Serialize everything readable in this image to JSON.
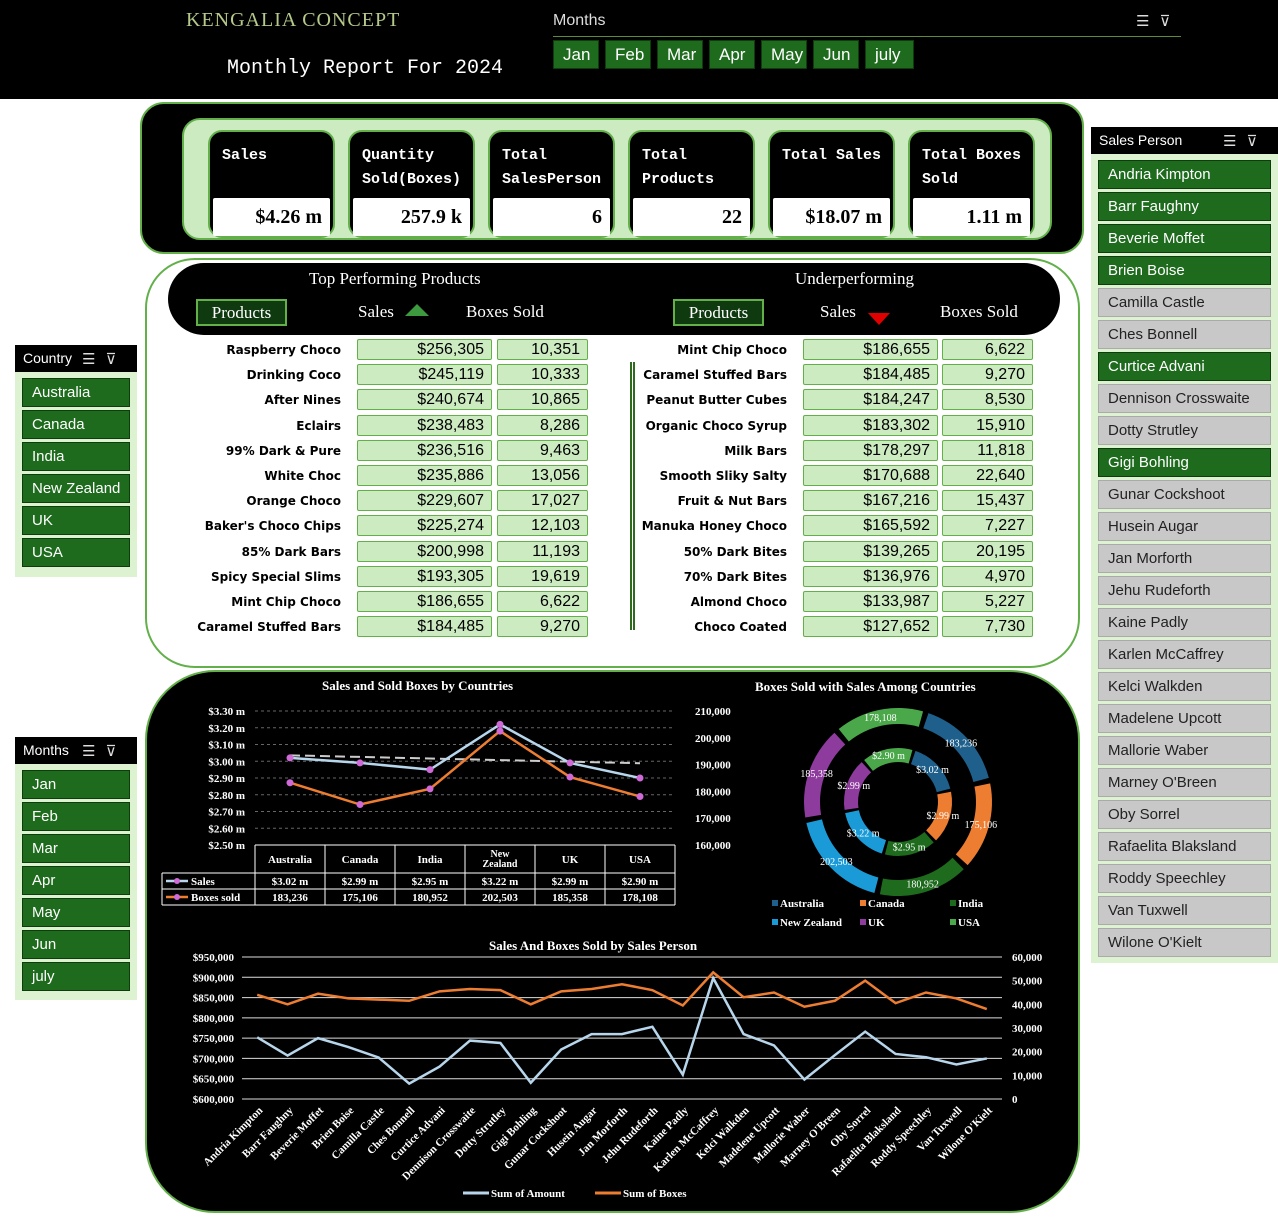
{
  "header": {
    "brand": "KENGALIA CONCEPT",
    "title": "Monthly Report For 2024",
    "months_label": "Months",
    "months": [
      "Jan",
      "Feb",
      "Mar",
      "Apr",
      "May",
      "Jun",
      "july"
    ]
  },
  "kpis": [
    {
      "title": "Sales",
      "value": "$4.26 m"
    },
    {
      "title": "Quantity Sold(Boxes)",
      "value": "257.9 k"
    },
    {
      "title": "Total SalesPerson",
      "value": "6"
    },
    {
      "title": "Total Products",
      "value": "22"
    },
    {
      "title": "Total Sales",
      "value": "$18.07 m"
    },
    {
      "title": "Total Boxes Sold",
      "value": "1.11 m"
    }
  ],
  "top_products": {
    "title": "Top Performing Products",
    "col_products": "Products",
    "col_sales": "Sales",
    "col_boxes": "Boxes Sold",
    "rows": [
      {
        "name": "Raspberry Choco",
        "sales": "$256,305",
        "boxes": "10,351"
      },
      {
        "name": "Drinking Coco",
        "sales": "$245,119",
        "boxes": "10,333"
      },
      {
        "name": "After Nines",
        "sales": "$240,674",
        "boxes": "10,865"
      },
      {
        "name": "Eclairs",
        "sales": "$238,483",
        "boxes": "8,286"
      },
      {
        "name": "99% Dark & Pure",
        "sales": "$236,516",
        "boxes": "9,463"
      },
      {
        "name": "White Choc",
        "sales": "$235,886",
        "boxes": "13,056"
      },
      {
        "name": "Orange Choco",
        "sales": "$229,607",
        "boxes": "17,027"
      },
      {
        "name": "Baker's Choco Chips",
        "sales": "$225,274",
        "boxes": "12,103"
      },
      {
        "name": "85% Dark Bars",
        "sales": "$200,998",
        "boxes": "11,193"
      },
      {
        "name": "Spicy Special Slims",
        "sales": "$193,305",
        "boxes": "19,619"
      },
      {
        "name": "Mint Chip Choco",
        "sales": "$186,655",
        "boxes": "6,622"
      },
      {
        "name": "Caramel Stuffed Bars",
        "sales": "$184,485",
        "boxes": "9,270"
      }
    ]
  },
  "under_products": {
    "title": "Underperforming",
    "col_products": "Products",
    "col_sales": "Sales",
    "col_boxes": "Boxes Sold",
    "rows": [
      {
        "name": "Mint Chip Choco",
        "sales": "$186,655",
        "boxes": "6,622"
      },
      {
        "name": "Caramel Stuffed Bars",
        "sales": "$184,485",
        "boxes": "9,270"
      },
      {
        "name": "Peanut Butter Cubes",
        "sales": "$184,247",
        "boxes": "8,530"
      },
      {
        "name": "Organic Choco Syrup",
        "sales": "$183,302",
        "boxes": "15,910"
      },
      {
        "name": "Milk Bars",
        "sales": "$178,297",
        "boxes": "11,818"
      },
      {
        "name": "Smooth Sliky Salty",
        "sales": "$170,688",
        "boxes": "22,640"
      },
      {
        "name": "Fruit & Nut Bars",
        "sales": "$167,216",
        "boxes": "15,437"
      },
      {
        "name": "Manuka Honey Choco",
        "sales": "$165,592",
        "boxes": "7,227"
      },
      {
        "name": "50% Dark Bites",
        "sales": "$139,265",
        "boxes": "20,195"
      },
      {
        "name": "70% Dark Bites",
        "sales": "$136,976",
        "boxes": "4,970"
      },
      {
        "name": "Almond Choco",
        "sales": "$133,987",
        "boxes": "5,227"
      },
      {
        "name": "Choco Coated",
        "sales": "$127,652",
        "boxes": "7,730"
      }
    ]
  },
  "country_slicer": {
    "label": "Country",
    "items": [
      "Australia",
      "Canada",
      "India",
      "New Zealand",
      "UK",
      "USA"
    ]
  },
  "months_slicer": {
    "label": "Months",
    "items": [
      "Jan",
      "Feb",
      "Mar",
      "Apr",
      "May",
      "Jun",
      "july"
    ]
  },
  "sales_person_slicer": {
    "label": "Sales Person",
    "items": [
      {
        "name": "Andria Kimpton",
        "selected": true
      },
      {
        "name": "Barr Faughny",
        "selected": true
      },
      {
        "name": "Beverie Moffet",
        "selected": true
      },
      {
        "name": "Brien Boise",
        "selected": true
      },
      {
        "name": "Camilla Castle",
        "selected": false
      },
      {
        "name": "Ches Bonnell",
        "selected": false
      },
      {
        "name": "Curtice Advani",
        "selected": true
      },
      {
        "name": "Dennison Crosswaite",
        "selected": false
      },
      {
        "name": "Dotty Strutley",
        "selected": false
      },
      {
        "name": "Gigi Bohling",
        "selected": true
      },
      {
        "name": "Gunar Cockshoot",
        "selected": false
      },
      {
        "name": "Husein Augar",
        "selected": false
      },
      {
        "name": "Jan Morforth",
        "selected": false
      },
      {
        "name": "Jehu Rudeforth",
        "selected": false
      },
      {
        "name": "Kaine Padly",
        "selected": false
      },
      {
        "name": "Karlen McCaffrey",
        "selected": false
      },
      {
        "name": "Kelci Walkden",
        "selected": false
      },
      {
        "name": "Madelene Upcott",
        "selected": false
      },
      {
        "name": "Mallorie Waber",
        "selected": false
      },
      {
        "name": "Marney O'Breen",
        "selected": false
      },
      {
        "name": "Oby Sorrel",
        "selected": false
      },
      {
        "name": "Rafaelita Blaksland",
        "selected": false
      },
      {
        "name": "Roddy Speechley",
        "selected": false
      },
      {
        "name": "Van Tuxwell",
        "selected": false
      },
      {
        "name": "Wilone O'Kielt",
        "selected": false
      }
    ]
  },
  "colors": {
    "accent_green": "#63b04b",
    "slicer_selected": "#1e6b1e",
    "slicer_unselected": "#c8c8c8",
    "panel_bg": "#ddf2d1",
    "up_arrow": "#3e9a3e",
    "down_arrow": "#e00000"
  },
  "chart_data": [
    {
      "type": "line",
      "title": "Sales and Sold Boxes by Countries",
      "categories": [
        "Australia",
        "Canada",
        "India",
        "New Zealand",
        "UK",
        "USA"
      ],
      "series": [
        {
          "name": "Sales",
          "axis": "left",
          "values": [
            3.02,
            2.99,
            2.95,
            3.22,
            2.99,
            2.9
          ],
          "labels": [
            "$3.02 m",
            "$2.99 m",
            "$2.95 m",
            "$3.22 m",
            "$2.99 m",
            "$2.90 m"
          ],
          "color": "#b7d6ec"
        },
        {
          "name": "Boxes sold",
          "axis": "right",
          "values": [
            183236,
            175106,
            180952,
            202503,
            185358,
            178108
          ],
          "labels": [
            "183,236",
            "175,106",
            "180,952",
            "202,503",
            "185,358",
            "178,108"
          ],
          "color": "#ed7d31"
        }
      ],
      "trendline": true,
      "y_left_ticks": [
        "$3.30 m",
        "$3.20 m",
        "$3.10 m",
        "$3.00 m",
        "$2.90 m",
        "$2.80 m",
        "$2.70 m",
        "$2.60 m",
        "$2.50 m"
      ],
      "y_left_range": [
        2.5,
        3.3
      ],
      "y_right_ticks": [
        "210,000",
        "200,000",
        "190,000",
        "180,000",
        "170,000",
        "160,000"
      ],
      "y_right_range": [
        160000,
        210000
      ],
      "grid": true,
      "data_table": true
    },
    {
      "type": "pie",
      "title": "Boxes Sold with Sales Among Countries",
      "variant": "doughnut",
      "categories": [
        "Australia",
        "Canada",
        "India",
        "New Zealand",
        "UK",
        "USA"
      ],
      "colors": [
        "#1f5f8b",
        "#ed7d31",
        "#1e6b1e",
        "#1a9bd7",
        "#8e3b9e",
        "#4aa84a"
      ],
      "outer_ring_boxes": [
        183236,
        175106,
        180952,
        202503,
        185358,
        178108
      ],
      "outer_labels": [
        "183,236",
        "175,106",
        "180,952",
        "202,503",
        "185,358",
        "178,108"
      ],
      "inner_ring_sales": [
        3.02,
        2.99,
        2.95,
        3.22,
        2.99,
        2.9
      ],
      "inner_labels": [
        "$3.02 m",
        "$2.99 m",
        "$2.95 m",
        "$3.22 m",
        "$2.99 m",
        "$2.90 m"
      ],
      "legend": "bottom"
    },
    {
      "type": "line",
      "title": "Sales And Boxes Sold by Sales Person",
      "categories": [
        "Andria Kimpton",
        "Barr Faughny",
        "Beverie Moffet",
        "Brien Boise",
        "Camilla Castle",
        "Ches Bonnell",
        "Curtice Advani",
        "Dennison Crosswaite",
        "Dotty Strutley",
        "Gigi Bohling",
        "Gunar Cockshoot",
        "Husein Augar",
        "Jan Morforth",
        "Jehu Rudeforth",
        "Kaine Padly",
        "Karlen McCaffrey",
        "Kelci Walkden",
        "Madelene Upcott",
        "Mallorie Waber",
        "Marney O'Breen",
        "Oby Sorrel",
        "Rafaelita Blaksland",
        "Roddy Speechley",
        "Van Tuxwell",
        "Wilone O'Kielt"
      ],
      "series": [
        {
          "name": "Sum of Amount",
          "axis": "left",
          "color": "#b7d6ec",
          "values": [
            752000,
            707000,
            750000,
            728000,
            702000,
            638000,
            680000,
            744000,
            738000,
            640000,
            722000,
            760000,
            760000,
            778000,
            660000,
            898000,
            760000,
            732000,
            648000,
            708000,
            766000,
            711000,
            703000,
            685000,
            700000
          ]
        },
        {
          "name": "Sum of Boxes",
          "axis": "right",
          "color": "#ed7d31",
          "values": [
            44000,
            40000,
            44500,
            42500,
            42000,
            41500,
            45500,
            46500,
            46000,
            40000,
            45500,
            46500,
            48500,
            46000,
            39500,
            53500,
            43000,
            45000,
            39000,
            41500,
            50000,
            40500,
            45000,
            42500,
            38000
          ]
        }
      ],
      "y_left_ticks": [
        "$950,000",
        "$900,000",
        "$850,000",
        "$800,000",
        "$750,000",
        "$700,000",
        "$650,000",
        "$600,000"
      ],
      "y_left_range": [
        600000,
        950000
      ],
      "y_right_ticks": [
        "60,000",
        "50,000",
        "40,000",
        "30,000",
        "20,000",
        "10,000",
        "0"
      ],
      "y_right_range": [
        0,
        60000
      ],
      "grid": true,
      "legend": "bottom"
    }
  ]
}
